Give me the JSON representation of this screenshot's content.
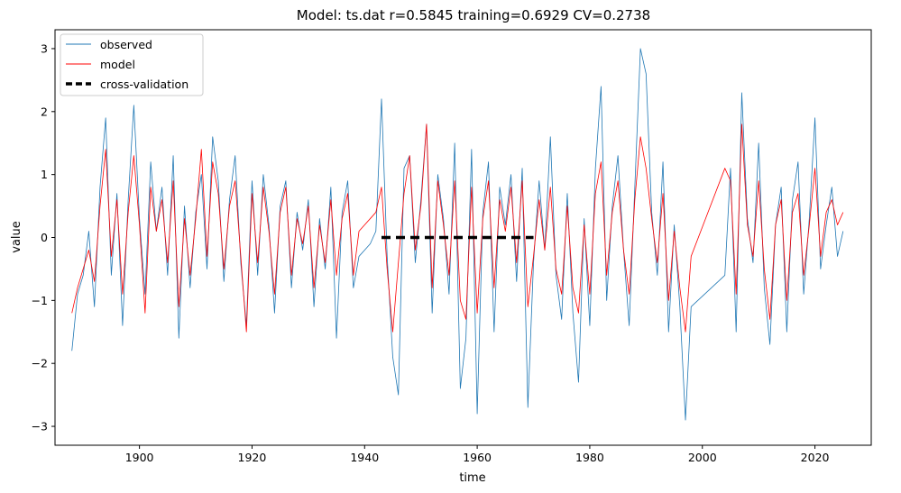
{
  "chart_data": {
    "type": "line",
    "title": "Model: ts.dat  r=0.5845  training=0.6929  CV=0.2738",
    "xlabel": "time",
    "ylabel": "value",
    "xlim": [
      1885,
      2030
    ],
    "ylim": [
      -3.3,
      3.3
    ],
    "xticks": [
      1900,
      1920,
      1940,
      1960,
      1980,
      2000,
      2020
    ],
    "yticks": [
      -3,
      -2,
      -1,
      0,
      1,
      2,
      3
    ],
    "legend_position": "top-left",
    "legend": [
      "observed",
      "model",
      "cross-validation"
    ],
    "colors": {
      "observed": "#1f77b4",
      "model": "#ff0000",
      "cv": "#000000"
    },
    "series": [
      {
        "name": "observed",
        "x": [
          1888,
          1889,
          1890,
          1891,
          1892,
          1893,
          1894,
          1895,
          1896,
          1897,
          1898,
          1899,
          1900,
          1901,
          1902,
          1903,
          1904,
          1905,
          1906,
          1907,
          1908,
          1909,
          1910,
          1911,
          1912,
          1913,
          1914,
          1915,
          1916,
          1917,
          1918,
          1919,
          1920,
          1921,
          1922,
          1923,
          1924,
          1925,
          1926,
          1927,
          1928,
          1929,
          1930,
          1931,
          1932,
          1933,
          1934,
          1935,
          1936,
          1937,
          1938,
          1939,
          1940,
          1941,
          1942,
          1943,
          1944,
          1945,
          1946,
          1947,
          1948,
          1949,
          1950,
          1951,
          1952,
          1953,
          1954,
          1955,
          1956,
          1957,
          1958,
          1959,
          1960,
          1961,
          1962,
          1963,
          1964,
          1965,
          1966,
          1967,
          1968,
          1969,
          1970,
          1971,
          1972,
          1973,
          1974,
          1975,
          1976,
          1977,
          1978,
          1979,
          1980,
          1981,
          1982,
          1983,
          1984,
          1985,
          1986,
          1987,
          1988,
          1989,
          1990,
          1991,
          1992,
          1993,
          1994,
          1995,
          1996,
          1997,
          1998,
          2004,
          2005,
          2006,
          2007,
          2008,
          2009,
          2010,
          2011,
          2012,
          2013,
          2014,
          2015,
          2016,
          2017,
          2018,
          2019,
          2020,
          2021,
          2022,
          2023,
          2024,
          2025
        ],
        "values": [
          -1.8,
          -0.9,
          -0.6,
          0.1,
          -1.1,
          0.8,
          1.9,
          -0.6,
          0.7,
          -1.4,
          0.6,
          2.1,
          0.3,
          -0.9,
          1.2,
          0.1,
          0.8,
          -0.6,
          1.3,
          -1.6,
          0.5,
          -0.8,
          0.4,
          1.0,
          -0.5,
          1.6,
          0.9,
          -0.7,
          0.6,
          1.3,
          -0.4,
          -1.4,
          0.9,
          -0.6,
          1.0,
          0.2,
          -1.2,
          0.5,
          0.9,
          -0.8,
          0.4,
          -0.2,
          0.6,
          -1.1,
          0.3,
          -0.5,
          0.8,
          -1.6,
          0.4,
          0.9,
          -0.8,
          -0.3,
          -0.2,
          -0.1,
          0.1,
          2.2,
          -0.3,
          -1.9,
          -2.5,
          1.1,
          1.3,
          -0.4,
          0.6,
          1.8,
          -1.2,
          1.0,
          0.3,
          -0.9,
          1.5,
          -2.4,
          -1.6,
          1.4,
          -2.8,
          0.4,
          1.2,
          -1.5,
          0.8,
          0.2,
          1.0,
          -0.7,
          1.1,
          -2.7,
          -0.4,
          0.9,
          -0.2,
          1.6,
          -0.6,
          -1.3,
          0.7,
          -1.2,
          -2.3,
          0.3,
          -1.4,
          1.1,
          2.4,
          -1.0,
          0.5,
          1.3,
          -0.2,
          -1.4,
          0.8,
          3.0,
          2.6,
          0.4,
          -0.6,
          1.2,
          -1.5,
          0.2,
          -1.1,
          -2.9,
          -1.1,
          -0.6,
          1.1,
          -1.5,
          2.3,
          0.3,
          -0.4,
          1.5,
          -0.8,
          -1.7,
          0.2,
          0.8,
          -1.5,
          0.6,
          1.2,
          -0.9,
          0.3,
          1.9,
          -0.5,
          0.2,
          0.8,
          -0.3,
          0.1
        ]
      },
      {
        "name": "model",
        "x": [
          1888,
          1889,
          1890,
          1891,
          1892,
          1893,
          1894,
          1895,
          1896,
          1897,
          1898,
          1899,
          1900,
          1901,
          1902,
          1903,
          1904,
          1905,
          1906,
          1907,
          1908,
          1909,
          1910,
          1911,
          1912,
          1913,
          1914,
          1915,
          1916,
          1917,
          1918,
          1919,
          1920,
          1921,
          1922,
          1923,
          1924,
          1925,
          1926,
          1927,
          1928,
          1929,
          1930,
          1931,
          1932,
          1933,
          1934,
          1935,
          1936,
          1937,
          1938,
          1939,
          1940,
          1941,
          1942,
          1943,
          1944,
          1945,
          1946,
          1947,
          1948,
          1949,
          1950,
          1951,
          1952,
          1953,
          1954,
          1955,
          1956,
          1957,
          1958,
          1959,
          1960,
          1961,
          1962,
          1963,
          1964,
          1965,
          1966,
          1967,
          1968,
          1969,
          1970,
          1971,
          1972,
          1973,
          1974,
          1975,
          1976,
          1977,
          1978,
          1979,
          1980,
          1981,
          1982,
          1983,
          1984,
          1985,
          1986,
          1987,
          1988,
          1989,
          1990,
          1991,
          1992,
          1993,
          1994,
          1995,
          1996,
          1997,
          1998,
          2004,
          2005,
          2006,
          2007,
          2008,
          2009,
          2010,
          2011,
          2012,
          2013,
          2014,
          2015,
          2016,
          2017,
          2018,
          2019,
          2020,
          2021,
          2022,
          2023,
          2024,
          2025
        ],
        "values": [
          -1.2,
          -0.8,
          -0.5,
          -0.2,
          -0.7,
          0.5,
          1.4,
          -0.3,
          0.6,
          -0.9,
          0.4,
          1.3,
          0.2,
          -1.2,
          0.8,
          0.1,
          0.6,
          -0.4,
          0.9,
          -1.1,
          0.3,
          -0.6,
          0.3,
          1.4,
          -0.3,
          1.2,
          0.7,
          -0.5,
          0.5,
          0.9,
          -0.3,
          -1.5,
          0.7,
          -0.4,
          0.8,
          0.1,
          -0.9,
          0.4,
          0.8,
          -0.6,
          0.3,
          -0.1,
          0.5,
          -0.8,
          0.2,
          -0.4,
          0.6,
          -0.6,
          0.3,
          0.7,
          -0.6,
          0.1,
          0.2,
          0.3,
          0.4,
          0.8,
          -0.5,
          -1.5,
          -0.4,
          0.7,
          1.3,
          -0.2,
          0.5,
          1.8,
          -0.8,
          0.9,
          0.2,
          -0.6,
          0.9,
          -1.0,
          -1.3,
          0.8,
          -1.2,
          0.3,
          0.9,
          -0.8,
          0.6,
          0.1,
          0.8,
          -0.4,
          0.9,
          -1.1,
          -0.3,
          0.6,
          -0.2,
          0.8,
          -0.5,
          -0.9,
          0.5,
          -0.8,
          -1.2,
          0.2,
          -0.9,
          0.7,
          1.2,
          -0.6,
          0.4,
          0.9,
          -0.2,
          -0.9,
          0.6,
          1.6,
          1.1,
          0.3,
          -0.4,
          0.7,
          -1.0,
          0.1,
          -0.8,
          -1.5,
          -0.3,
          1.1,
          0.9,
          -0.9,
          1.8,
          0.2,
          -0.3,
          0.9,
          -0.5,
          -1.3,
          0.2,
          0.6,
          -1.0,
          0.4,
          0.7,
          -0.6,
          0.2,
          1.1,
          -0.3,
          0.4,
          0.6,
          0.2,
          0.4
        ]
      },
      {
        "name": "cross-validation",
        "x": [
          1943,
          1970
        ],
        "values": [
          0,
          0
        ]
      }
    ]
  }
}
